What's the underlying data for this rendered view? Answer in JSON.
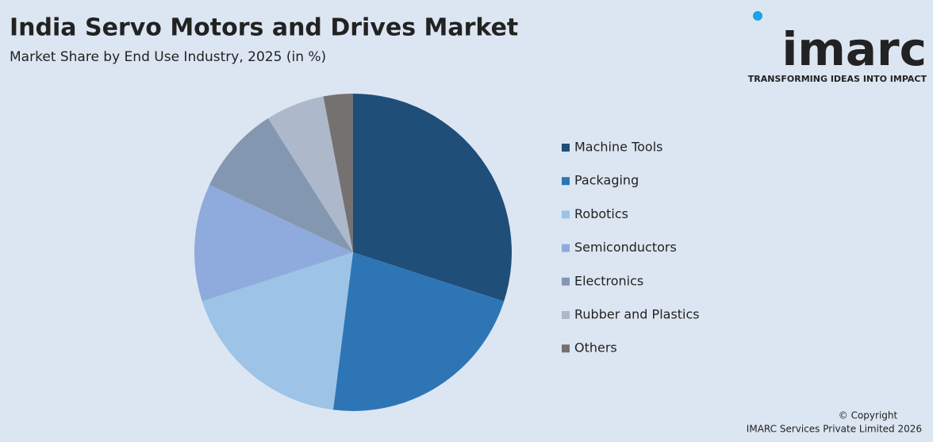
{
  "chart_data": {
    "type": "pie",
    "title": "India Servo Motors and Drives Market",
    "subtitle": "Market Share by End Use Industry, 2025 (in %)",
    "categories": [
      "Machine Tools",
      "Packaging",
      "Robotics",
      "Semiconductors",
      "Electronics",
      "Rubber and Plastics",
      "Others"
    ],
    "values": [
      30,
      22,
      18,
      12,
      9,
      6,
      3
    ],
    "colors": [
      "#1f4e79",
      "#2e75b6",
      "#9dc3e6",
      "#8faadc",
      "#8497b0",
      "#adb9ca",
      "#767171"
    ],
    "legend": "right"
  },
  "logo": {
    "name": "imarc",
    "tagline": "TRANSFORMING IDEAS INTO IMPACT"
  },
  "footer": {
    "copyright": "© Copyright",
    "company": "IMARC Services Private Limited 2026"
  }
}
